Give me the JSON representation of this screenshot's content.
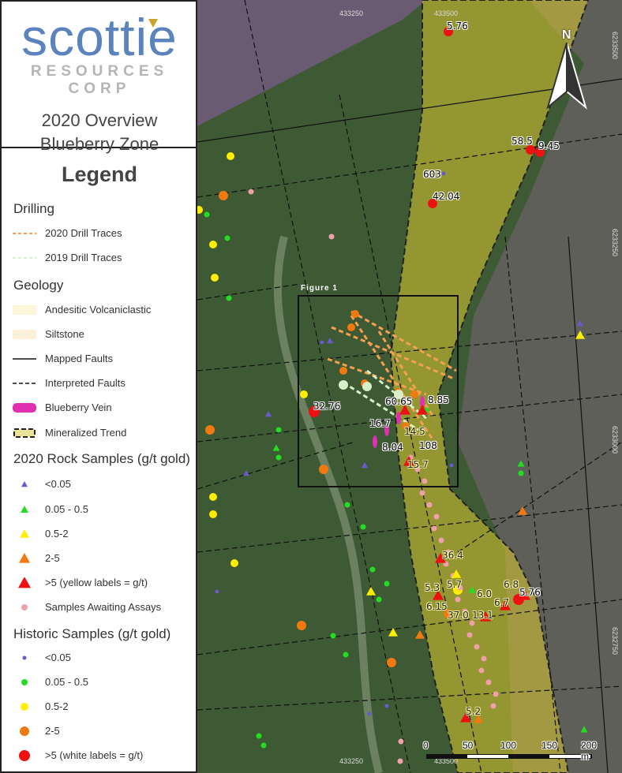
{
  "logo": {
    "brand": "scottie",
    "sub": "RESOURCES CORP"
  },
  "title": {
    "line1": "2020 Overview",
    "line2": "Blueberry Zone"
  },
  "legend": {
    "heading": "Legend",
    "drilling": {
      "heading": "Drilling",
      "items": [
        "2020 Drill Traces",
        "2019 Drill Traces"
      ]
    },
    "geology": {
      "heading": "Geology",
      "items": [
        "Andesitic Volcaniclastic",
        "Siltstone",
        "Mapped Faults",
        "Interpreted Faults",
        "Blueberry Vein",
        "Mineralized Trend"
      ]
    },
    "rock": {
      "heading": "2020 Rock Samples (g/t gold)",
      "items": [
        "<0.05",
        "0.05 - 0.5",
        "0.5-2",
        "2-5",
        ">5 (yellow labels = g/t)",
        "Samples Awaiting Assays"
      ]
    },
    "historic": {
      "heading": "Historic Samples (g/t gold)",
      "items": [
        "<0.05",
        "0.05 - 0.5",
        "0.5-2",
        "2-5",
        ">5 (white labels = g/t)"
      ]
    }
  },
  "colors": {
    "lt005": "#6a5acd",
    "c005_05": "#22dd22",
    "c05_2": "#ffee00",
    "c2_5": "#f07a10",
    "gt5": "#ee1111",
    "awaiting": "#f0a0a8",
    "drill2020": "#f5a050",
    "drill2019": "#d8f0c8",
    "vein": "#e030b0",
    "trend": "#d8c830",
    "andesitic": "#fdf6d8",
    "siltstone": "#fdf0d8",
    "brand": "#5b83be"
  },
  "map": {
    "figure_label": "Figure 1",
    "north": "N",
    "coords_top": [
      "433250",
      "433500"
    ],
    "coords_bottom": [
      "433250",
      "433500"
    ],
    "coords_right": [
      "6233500",
      "6233250",
      "6233000",
      "6232750"
    ],
    "white_labels": [
      "5.76",
      "58.5",
      "9.45",
      "603",
      "42.04",
      "32.76",
      "60.65",
      "8.85",
      "16.7",
      "8.04",
      "108",
      "5.76"
    ],
    "yellow_labels": [
      "14.5",
      "15.7",
      "36.4",
      "5.3",
      "5.7",
      "6.8",
      "6.0",
      "6.7",
      "6.15",
      "37.0",
      "13.1",
      "5.2"
    ],
    "scale": [
      "0",
      "50",
      "100",
      "150",
      "200 m"
    ]
  }
}
